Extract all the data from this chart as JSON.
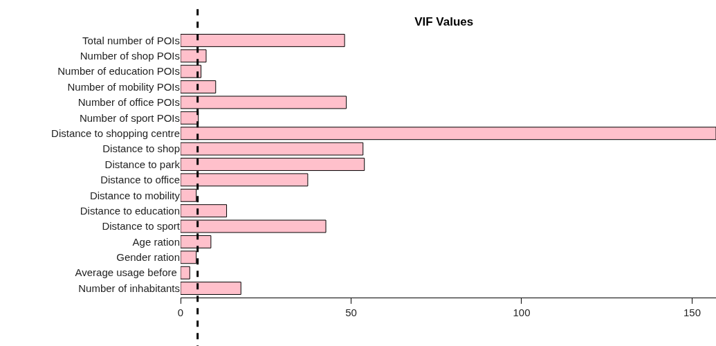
{
  "chart_data": {
    "type": "bar",
    "orientation": "horizontal",
    "title": "VIF Values",
    "categories": [
      "Total number of POIs",
      "Number of shop POIs",
      "Number of education POIs",
      "Number of mobility POIs",
      "Number of office POIs",
      "Number of sport POIs",
      "Distance to shopping centre",
      "Distance to shop",
      "Distance to park",
      "Distance to office",
      "Distance to mobility",
      "Distance to education",
      "Distance to sport",
      "Age ration",
      "Gender ration",
      "Average usage before ",
      "Number of inhabitants"
    ],
    "values": [
      48.1,
      7.5,
      6.0,
      10.3,
      48.6,
      5.2,
      157,
      53.5,
      53.9,
      37.3,
      4.6,
      13.5,
      42.6,
      8.9,
      4.6,
      2.7,
      17.7
    ],
    "color": "#ffc0cb",
    "xlim": [
      0,
      157
    ],
    "xticks": [
      0,
      50,
      100,
      150
    ],
    "ref_lines": [
      {
        "axis": "x",
        "value": 5,
        "color": "#000000",
        "line_style": "dashed"
      }
    ]
  }
}
